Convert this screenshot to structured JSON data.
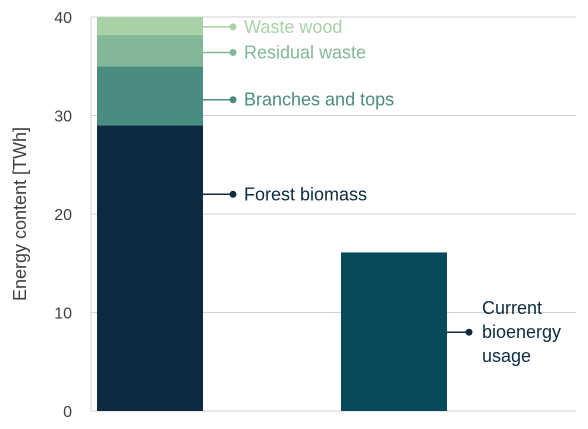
{
  "chart_data": {
    "type": "bar",
    "stacked": true,
    "ylabel": "Energy content [TWh]",
    "ylim": [
      0,
      40
    ],
    "yticks": [
      0,
      10,
      20,
      30,
      40
    ],
    "grid": true,
    "legend": "direct-labels-right-of-bars",
    "bars": [
      {
        "segments": [
          {
            "name": "Forest biomass",
            "value": 29.0,
            "color": "#0c2b40"
          },
          {
            "name": "Branches and tops",
            "value": 6.0,
            "color": "#4a8b82"
          },
          {
            "name": "Residual waste",
            "value": 3.2,
            "color": "#82b898"
          },
          {
            "name": "Waste wood",
            "value": 1.8,
            "color": "#a9d1a6"
          }
        ]
      },
      {
        "segments": [
          {
            "name": "Current bioenergy usage",
            "value": 16.1,
            "color": "#074a5c"
          }
        ]
      }
    ],
    "labels": [
      {
        "lines": [
          "Waste wood"
        ],
        "color": "#a9d1a6",
        "y": 39.0,
        "bar": 0
      },
      {
        "lines": [
          "Residual waste"
        ],
        "color": "#82b898",
        "y": 36.4,
        "bar": 0
      },
      {
        "lines": [
          "Branches and tops"
        ],
        "color": "#4a8b82",
        "y": 31.6,
        "bar": 0
      },
      {
        "lines": [
          "Forest biomass"
        ],
        "color": "#0c2b40",
        "y": 22.0,
        "bar": 0
      },
      {
        "lines": [
          "Current",
          "bioenergy",
          "usage"
        ],
        "color": "#0c2b40",
        "y": 8.0,
        "bar": 1
      }
    ]
  }
}
